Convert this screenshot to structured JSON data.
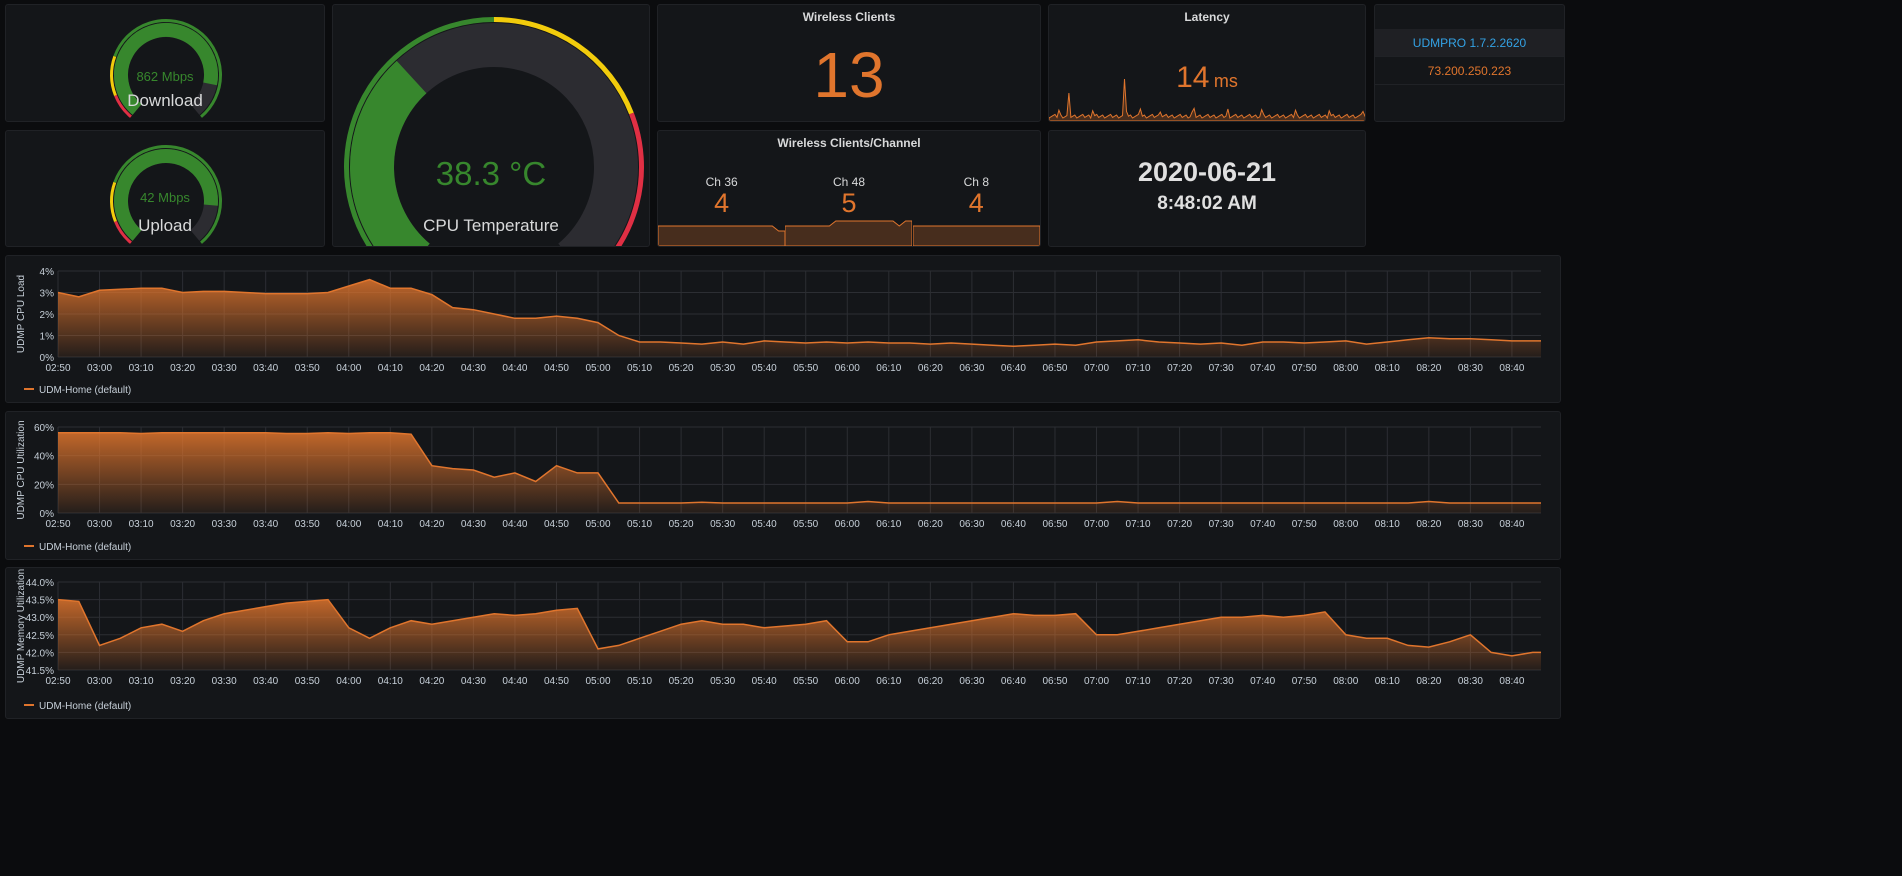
{
  "colors": {
    "green": "#37872d",
    "yellow": "#f2cc0c",
    "red": "#e02f44",
    "orange": "#e0752d",
    "gray": "#2c2c31",
    "blue": "#33a2e5"
  },
  "download": {
    "label": "Download",
    "value_text": "862 Mbps",
    "value": 862,
    "min": 0,
    "max": 1000,
    "thresholds": [
      {
        "v": 0,
        "c": "red"
      },
      {
        "v": 100,
        "c": "yellow"
      },
      {
        "v": 250,
        "c": "green"
      }
    ]
  },
  "upload": {
    "label": "Upload",
    "value_text": "42 Mbps",
    "value": 42,
    "min": 0,
    "max": 50,
    "thresholds": [
      {
        "v": 0,
        "c": "red"
      },
      {
        "v": 5,
        "c": "yellow"
      },
      {
        "v": 12.5,
        "c": "green"
      }
    ]
  },
  "cpu_temp": {
    "label": "CPU Temperature",
    "value_text": "38.3 °C",
    "value": 38.3,
    "min": 0,
    "max": 110,
    "thresholds": [
      {
        "v": 0,
        "c": "green"
      },
      {
        "v": 55,
        "c": "yellow"
      },
      {
        "v": 82,
        "c": "red"
      }
    ]
  },
  "wireless_clients": {
    "title": "Wireless Clients",
    "value": "13"
  },
  "channels": {
    "title": "Wireless Clients/Channel",
    "items": [
      {
        "label": "Ch 36",
        "value": "4",
        "spark": [
          4,
          4,
          4,
          4,
          4,
          4,
          4,
          4,
          4,
          4,
          4,
          4,
          4,
          4,
          4,
          4,
          4,
          4,
          4,
          3,
          3
        ]
      },
      {
        "label": "Ch 48",
        "value": "5",
        "spark": [
          4,
          4,
          4,
          4,
          4,
          4,
          4,
          4,
          5,
          5,
          5,
          5,
          5,
          5,
          5,
          5,
          5,
          5,
          4,
          5,
          5
        ]
      },
      {
        "label": "Ch 8",
        "value": "4",
        "spark": [
          4,
          4,
          4,
          4,
          4,
          4,
          4,
          4,
          4,
          4,
          4,
          4,
          4,
          4,
          4,
          4,
          4,
          4,
          4,
          4,
          4
        ]
      }
    ]
  },
  "latency": {
    "title": "Latency",
    "value": "14",
    "unit": "ms"
  },
  "datetime": {
    "date": "2020-06-21",
    "time": "8:48:02 AM"
  },
  "info": {
    "version": "UDMPRO 1.7.2.2620",
    "ip": "73.200.250.223"
  },
  "x_labels": [
    "02:50",
    "03:00",
    "03:10",
    "03:20",
    "03:30",
    "03:40",
    "03:50",
    "04:00",
    "04:10",
    "04:20",
    "04:30",
    "04:40",
    "04:50",
    "05:00",
    "05:10",
    "05:20",
    "05:30",
    "05:40",
    "05:50",
    "06:00",
    "06:10",
    "06:20",
    "06:30",
    "06:40",
    "06:50",
    "07:00",
    "07:10",
    "07:20",
    "07:30",
    "07:40",
    "07:50",
    "08:00",
    "08:10",
    "08:20",
    "08:30",
    "08:40"
  ],
  "graphs": [
    {
      "ylabel": "UDMP CPU Load",
      "legend": "UDM-Home (default)",
      "ymin": 0,
      "ymax": 4,
      "yticks": [
        "0%",
        "1%",
        "2%",
        "3%",
        "4%"
      ],
      "values": [
        3.0,
        2.8,
        3.1,
        3.15,
        3.2,
        3.2,
        3.0,
        3.05,
        3.05,
        3.0,
        2.95,
        2.95,
        2.95,
        3.0,
        3.3,
        3.6,
        3.2,
        3.2,
        2.9,
        2.3,
        2.2,
        2.0,
        1.8,
        1.8,
        1.9,
        1.8,
        1.6,
        1.0,
        0.7,
        0.7,
        0.65,
        0.6,
        0.7,
        0.6,
        0.75,
        0.7,
        0.65,
        0.7,
        0.65,
        0.7,
        0.65,
        0.65,
        0.6,
        0.65,
        0.6,
        0.55,
        0.5,
        0.55,
        0.6,
        0.55,
        0.7,
        0.75,
        0.8,
        0.7,
        0.65,
        0.6,
        0.65,
        0.55,
        0.7,
        0.7,
        0.65,
        0.7,
        0.75,
        0.6,
        0.7,
        0.8,
        0.9,
        0.85,
        0.85,
        0.8,
        0.75,
        0.75,
        0.75
      ]
    },
    {
      "ylabel": "UDMP CPU Utilization",
      "legend": "UDM-Home (default)",
      "ymin": 0,
      "ymax": 60,
      "yticks": [
        "0%",
        "20%",
        "40%",
        "60%"
      ],
      "values": [
        56,
        56,
        56,
        56,
        55.5,
        56,
        56,
        56,
        56,
        56,
        56,
        55.5,
        55.5,
        56,
        55.5,
        56,
        56,
        55,
        33,
        31,
        30,
        25,
        28,
        22,
        33,
        28,
        28,
        7,
        7,
        7,
        7,
        7.5,
        7,
        7,
        7,
        7,
        7,
        7,
        7,
        8,
        7,
        7,
        7,
        7,
        7,
        7,
        7,
        7,
        7,
        7,
        7,
        8,
        7,
        7,
        7,
        7,
        7,
        7,
        7,
        7,
        7,
        7,
        7,
        7,
        7,
        7,
        8,
        7,
        7,
        7,
        7,
        7,
        7
      ]
    },
    {
      "ylabel": "UDMP Memory Utilization",
      "legend": "UDM-Home (default)",
      "ymin": 41.5,
      "ymax": 44,
      "yticks": [
        "41.5%",
        "42.0%",
        "42.5%",
        "43.0%",
        "43.5%",
        "44.0%"
      ],
      "values": [
        43.5,
        43.45,
        42.2,
        42.4,
        42.7,
        42.8,
        42.6,
        42.9,
        43.1,
        43.2,
        43.3,
        43.4,
        43.45,
        43.5,
        42.7,
        42.4,
        42.7,
        42.9,
        42.8,
        42.9,
        43.0,
        43.1,
        43.05,
        43.1,
        43.2,
        43.25,
        42.1,
        42.2,
        42.4,
        42.6,
        42.8,
        42.9,
        42.8,
        42.8,
        42.7,
        42.75,
        42.8,
        42.9,
        42.3,
        42.3,
        42.5,
        42.6,
        42.7,
        42.8,
        42.9,
        43.0,
        43.1,
        43.05,
        43.05,
        43.1,
        42.5,
        42.5,
        42.6,
        42.7,
        42.8,
        42.9,
        43.0,
        43.0,
        43.05,
        43.0,
        43.05,
        43.15,
        42.5,
        42.4,
        42.4,
        42.2,
        42.15,
        42.3,
        42.5,
        42.0,
        41.9,
        42.0,
        42.0
      ]
    }
  ]
}
